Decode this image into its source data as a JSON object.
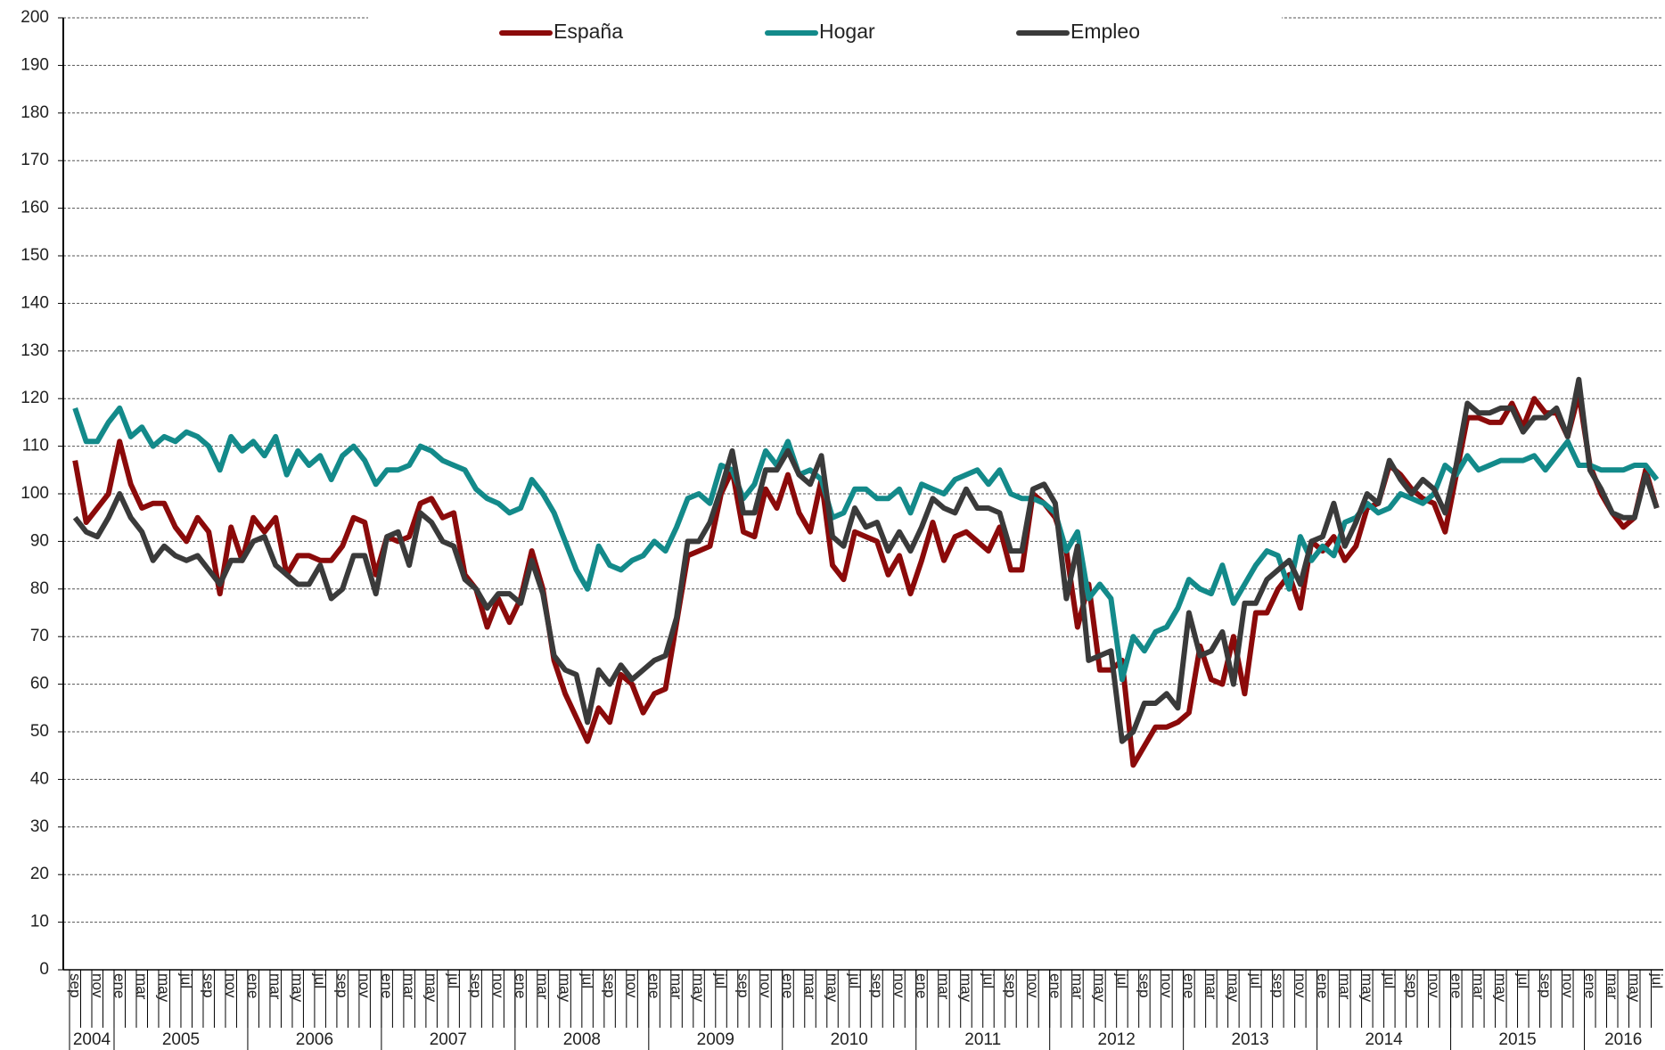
{
  "chart_data": {
    "type": "line",
    "categories": [
      "sep",
      null,
      "nov",
      null,
      "ene",
      null,
      "mar",
      null,
      "may",
      null,
      "jul",
      null,
      "sep",
      null,
      "nov",
      null,
      "ene",
      null,
      "mar",
      null,
      "may",
      null,
      "jul",
      null,
      "sep",
      null,
      "nov",
      null,
      "ene",
      null,
      "mar",
      null,
      "may",
      null,
      "jul",
      null,
      "sep",
      null,
      "nov",
      null,
      "ene",
      null,
      "mar",
      null,
      "may",
      null,
      "jul",
      null,
      "sep",
      null,
      "nov",
      null,
      "ene",
      null,
      "mar",
      null,
      "may",
      null,
      "jul",
      null,
      "sep",
      null,
      "nov",
      null,
      "ene",
      null,
      "mar",
      null,
      "may",
      null,
      "jul",
      null,
      "sep",
      null,
      "nov",
      null,
      "ene",
      null,
      "mar",
      null,
      "may",
      null,
      "jul",
      null,
      "sep",
      null,
      "nov",
      null,
      "ene",
      null,
      "mar",
      null,
      "may",
      null,
      "jul",
      null,
      "sep",
      null,
      "nov",
      null,
      "ene",
      null,
      "mar",
      null,
      "may",
      null,
      "jul",
      null,
      "sep",
      null,
      "nov",
      null,
      "ene",
      null,
      "mar",
      null,
      "may",
      null,
      "jul",
      null,
      "sep",
      null,
      "nov",
      null,
      "ene",
      null,
      "mar",
      null,
      "may",
      null,
      "jul",
      null,
      "sep",
      null,
      "nov",
      null,
      "ene",
      null,
      "mar",
      null,
      "may",
      null,
      "jul"
    ],
    "years": [
      "2004",
      "2005",
      "2006",
      "2007",
      "2008",
      "2009",
      "2010",
      "2011",
      "2012",
      "2013",
      "2014",
      "2015",
      "2016"
    ],
    "series": [
      {
        "name": "España",
        "color": "#8b0a0a",
        "values": [
          107,
          94,
          97,
          100,
          111,
          102,
          97,
          98,
          98,
          93,
          90,
          95,
          92,
          79,
          93,
          86,
          95,
          92,
          95,
          83,
          87,
          87,
          86,
          86,
          89,
          95,
          94,
          83,
          91,
          90,
          91,
          98,
          99,
          95,
          96,
          83,
          80,
          72,
          78,
          73,
          78,
          88,
          80,
          65,
          58,
          53,
          48,
          55,
          52,
          62,
          60,
          54,
          58,
          59,
          73,
          87,
          88,
          89,
          100,
          105,
          92,
          91,
          101,
          97,
          104,
          96,
          92,
          103,
          85,
          82,
          92,
          91,
          90,
          83,
          87,
          79,
          86,
          94,
          86,
          91,
          92,
          90,
          88,
          93,
          84,
          84,
          100,
          98,
          95,
          88,
          72,
          81,
          63,
          63,
          65,
          43,
          47,
          51,
          51,
          52,
          54,
          68,
          61,
          60,
          70,
          58,
          75,
          75,
          80,
          83,
          76,
          90,
          88,
          91,
          86,
          89,
          97,
          98,
          106,
          104,
          101,
          99,
          98,
          92,
          104,
          116,
          116,
          115,
          115,
          119,
          114,
          120,
          117,
          117,
          112,
          121,
          106,
          100,
          96,
          93,
          95,
          105,
          97
        ]
      },
      {
        "name": "Hogar",
        "color": "#138a8a",
        "values": [
          118,
          111,
          111,
          115,
          118,
          112,
          114,
          110,
          112,
          111,
          113,
          112,
          110,
          105,
          112,
          109,
          111,
          108,
          112,
          104,
          109,
          106,
          108,
          103,
          108,
          110,
          107,
          102,
          105,
          105,
          106,
          110,
          109,
          107,
          106,
          105,
          101,
          99,
          98,
          96,
          97,
          103,
          100,
          96,
          90,
          84,
          80,
          89,
          85,
          84,
          86,
          87,
          90,
          88,
          93,
          99,
          100,
          98,
          106,
          105,
          99,
          102,
          109,
          106,
          111,
          104,
          105,
          103,
          95,
          96,
          101,
          101,
          99,
          99,
          101,
          96,
          102,
          101,
          100,
          103,
          104,
          105,
          102,
          105,
          100,
          99,
          99,
          98,
          96,
          88,
          92,
          78,
          81,
          78,
          61,
          70,
          67,
          71,
          72,
          76,
          82,
          80,
          79,
          85,
          77,
          81,
          85,
          88,
          87,
          80,
          91,
          86,
          89,
          87,
          94,
          95,
          98,
          96,
          97,
          100,
          99,
          98,
          100,
          106,
          104,
          108,
          105,
          106,
          107,
          107,
          107,
          108,
          105,
          108,
          111,
          106,
          106,
          105,
          105,
          105,
          106,
          106,
          103
        ]
      },
      {
        "name": "Empleo",
        "color": "#3a3a3a",
        "values": [
          95,
          92,
          91,
          95,
          100,
          95,
          92,
          86,
          89,
          87,
          86,
          87,
          84,
          81,
          86,
          86,
          90,
          91,
          85,
          83,
          81,
          81,
          85,
          78,
          80,
          87,
          87,
          79,
          91,
          92,
          85,
          96,
          94,
          90,
          89,
          82,
          80,
          76,
          79,
          79,
          77,
          86,
          79,
          66,
          63,
          62,
          52,
          63,
          60,
          64,
          61,
          63,
          65,
          66,
          74,
          90,
          90,
          94,
          101,
          109,
          96,
          96,
          105,
          105,
          109,
          104,
          102,
          108,
          91,
          89,
          97,
          93,
          94,
          88,
          92,
          88,
          93,
          99,
          97,
          96,
          101,
          97,
          97,
          96,
          88,
          88,
          101,
          102,
          98,
          78,
          89,
          65,
          66,
          67,
          48,
          50,
          56,
          56,
          58,
          55,
          75,
          66,
          67,
          71,
          60,
          77,
          77,
          82,
          84,
          86,
          81,
          90,
          91,
          98,
          89,
          94,
          100,
          98,
          107,
          103,
          100,
          103,
          101,
          96,
          106,
          119,
          117,
          117,
          118,
          118,
          113,
          116,
          116,
          118,
          112,
          124,
          105,
          101,
          96,
          95,
          95,
          104,
          97
        ]
      }
    ],
    "ylim": [
      0,
      200
    ],
    "yticks": [
      0,
      10,
      20,
      30,
      40,
      50,
      60,
      70,
      80,
      90,
      100,
      110,
      120,
      130,
      140,
      150,
      160,
      170,
      180,
      190,
      200
    ],
    "grid": true,
    "legend": "top"
  }
}
